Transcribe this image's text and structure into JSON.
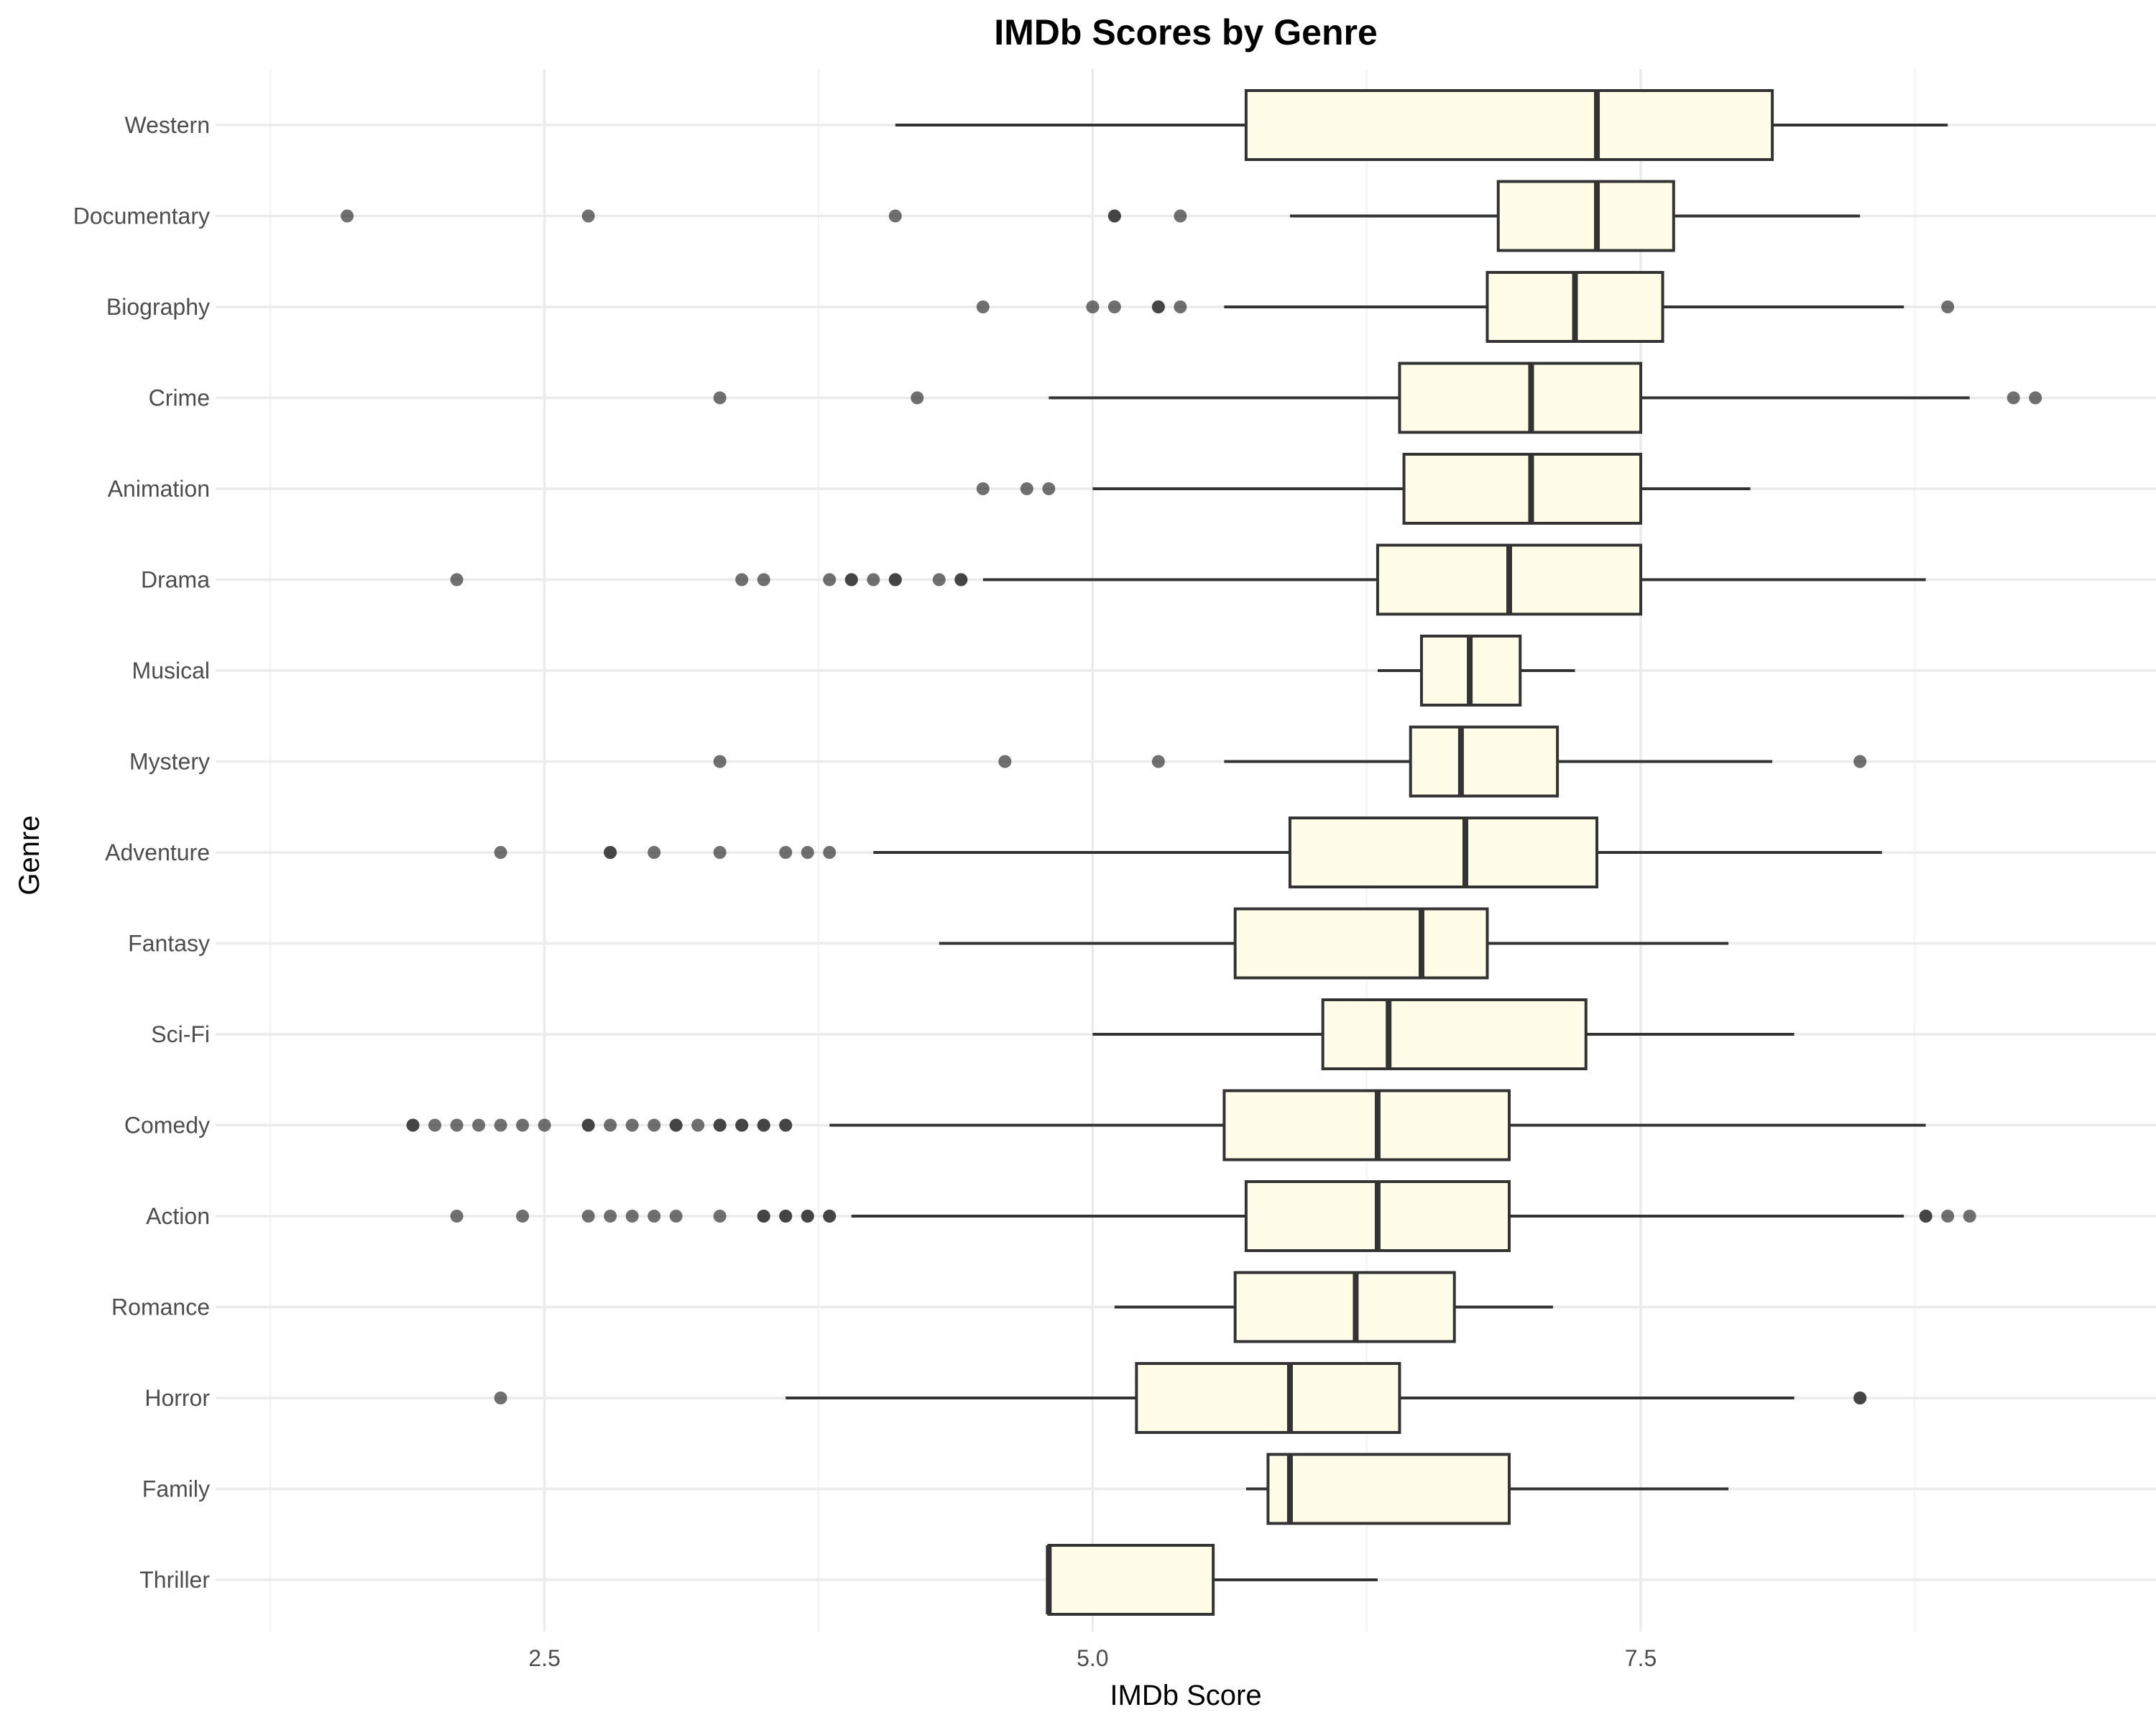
{
  "chart_data": {
    "type": "boxplot",
    "orientation": "horizontal",
    "title": "IMDb Scores by Genre",
    "xlabel": "IMDb Score",
    "ylabel": "Genre",
    "xlim": [
      1.0,
      9.85
    ],
    "xticks": [
      2.5,
      5.0,
      7.5
    ],
    "xtick_labels": [
      "2.5",
      "5.0",
      "7.5"
    ],
    "grid": true,
    "legend": "none",
    "box_fill": "#fffde8",
    "box_stroke": "#333333",
    "categories": [
      "Western",
      "Documentary",
      "Biography",
      "Crime",
      "Animation",
      "Drama",
      "Musical",
      "Mystery",
      "Adventure",
      "Fantasy",
      "Sci-Fi",
      "Comedy",
      "Action",
      "Romance",
      "Horror",
      "Family",
      "Thriller"
    ],
    "boxes": [
      {
        "genre": "Western",
        "whisker_low": 4.1,
        "q1": 5.7,
        "median": 7.3,
        "q3": 8.1,
        "whisker_high": 8.9,
        "outliers": []
      },
      {
        "genre": "Documentary",
        "whisker_low": 5.9,
        "q1": 6.85,
        "median": 7.3,
        "q3": 7.65,
        "whisker_high": 8.5,
        "outliers": [
          1.6,
          2.7,
          4.1,
          5.1,
          5.1,
          5.4
        ]
      },
      {
        "genre": "Biography",
        "whisker_low": 5.6,
        "q1": 6.8,
        "median": 7.2,
        "q3": 7.6,
        "whisker_high": 8.7,
        "outliers": [
          4.5,
          5.0,
          5.1,
          5.3,
          5.3,
          5.4,
          8.9
        ]
      },
      {
        "genre": "Crime",
        "whisker_low": 4.8,
        "q1": 6.4,
        "median": 7.0,
        "q3": 7.5,
        "whisker_high": 9.0,
        "outliers": [
          3.3,
          4.2,
          9.2,
          9.3
        ]
      },
      {
        "genre": "Animation",
        "whisker_low": 5.0,
        "q1": 6.42,
        "median": 7.0,
        "q3": 7.5,
        "whisker_high": 8.0,
        "outliers": [
          4.5,
          4.7,
          4.8
        ]
      },
      {
        "genre": "Drama",
        "whisker_low": 4.5,
        "q1": 6.3,
        "median": 6.9,
        "q3": 7.5,
        "whisker_high": 8.8,
        "outliers": [
          2.1,
          3.4,
          3.5,
          3.8,
          3.9,
          3.9,
          4.0,
          4.1,
          4.1,
          4.3,
          4.4,
          4.4
        ]
      },
      {
        "genre": "Musical",
        "whisker_low": 6.3,
        "q1": 6.5,
        "median": 6.72,
        "q3": 6.95,
        "whisker_high": 7.2,
        "outliers": []
      },
      {
        "genre": "Mystery",
        "whisker_low": 5.6,
        "q1": 6.45,
        "median": 6.68,
        "q3": 7.12,
        "whisker_high": 8.1,
        "outliers": [
          3.3,
          4.6,
          5.3,
          8.5
        ]
      },
      {
        "genre": "Adventure",
        "whisker_low": 4.0,
        "q1": 5.9,
        "median": 6.7,
        "q3": 7.3,
        "whisker_high": 8.6,
        "outliers": [
          2.3,
          2.8,
          2.8,
          3.0,
          3.3,
          3.6,
          3.7,
          3.8
        ]
      },
      {
        "genre": "Fantasy",
        "whisker_low": 4.3,
        "q1": 5.65,
        "median": 6.5,
        "q3": 6.8,
        "whisker_high": 7.9,
        "outliers": []
      },
      {
        "genre": "Sci-Fi",
        "whisker_low": 5.0,
        "q1": 6.05,
        "median": 6.35,
        "q3": 7.25,
        "whisker_high": 8.2,
        "outliers": []
      },
      {
        "genre": "Comedy",
        "whisker_low": 3.8,
        "q1": 5.6,
        "median": 6.3,
        "q3": 6.9,
        "whisker_high": 8.8,
        "outliers": [
          1.9,
          1.9,
          2.0,
          2.1,
          2.2,
          2.3,
          2.4,
          2.5,
          2.7,
          2.7,
          2.8,
          2.9,
          3.0,
          3.1,
          3.1,
          3.2,
          3.3,
          3.3,
          3.4,
          3.4,
          3.5,
          3.5,
          3.6,
          3.6
        ]
      },
      {
        "genre": "Action",
        "whisker_low": 3.9,
        "q1": 5.7,
        "median": 6.3,
        "q3": 6.9,
        "whisker_high": 8.7,
        "outliers": [
          2.1,
          2.4,
          2.7,
          2.8,
          2.9,
          3.0,
          3.1,
          3.3,
          3.5,
          3.5,
          3.6,
          3.6,
          3.7,
          3.7,
          3.8,
          3.8,
          8.8,
          8.8,
          8.9,
          9.0
        ]
      },
      {
        "genre": "Romance",
        "whisker_low": 5.1,
        "q1": 5.65,
        "median": 6.2,
        "q3": 6.65,
        "whisker_high": 7.1,
        "outliers": []
      },
      {
        "genre": "Horror",
        "whisker_low": 3.6,
        "q1": 5.2,
        "median": 5.9,
        "q3": 6.4,
        "whisker_high": 8.2,
        "outliers": [
          2.3,
          8.5,
          8.5
        ]
      },
      {
        "genre": "Family",
        "whisker_low": 5.7,
        "q1": 5.8,
        "median": 5.9,
        "q3": 6.9,
        "whisker_high": 7.9,
        "outliers": []
      },
      {
        "genre": "Thriller",
        "whisker_low": 4.8,
        "q1": 4.8,
        "median": 4.8,
        "q3": 5.55,
        "whisker_high": 6.3,
        "outliers": []
      }
    ]
  }
}
